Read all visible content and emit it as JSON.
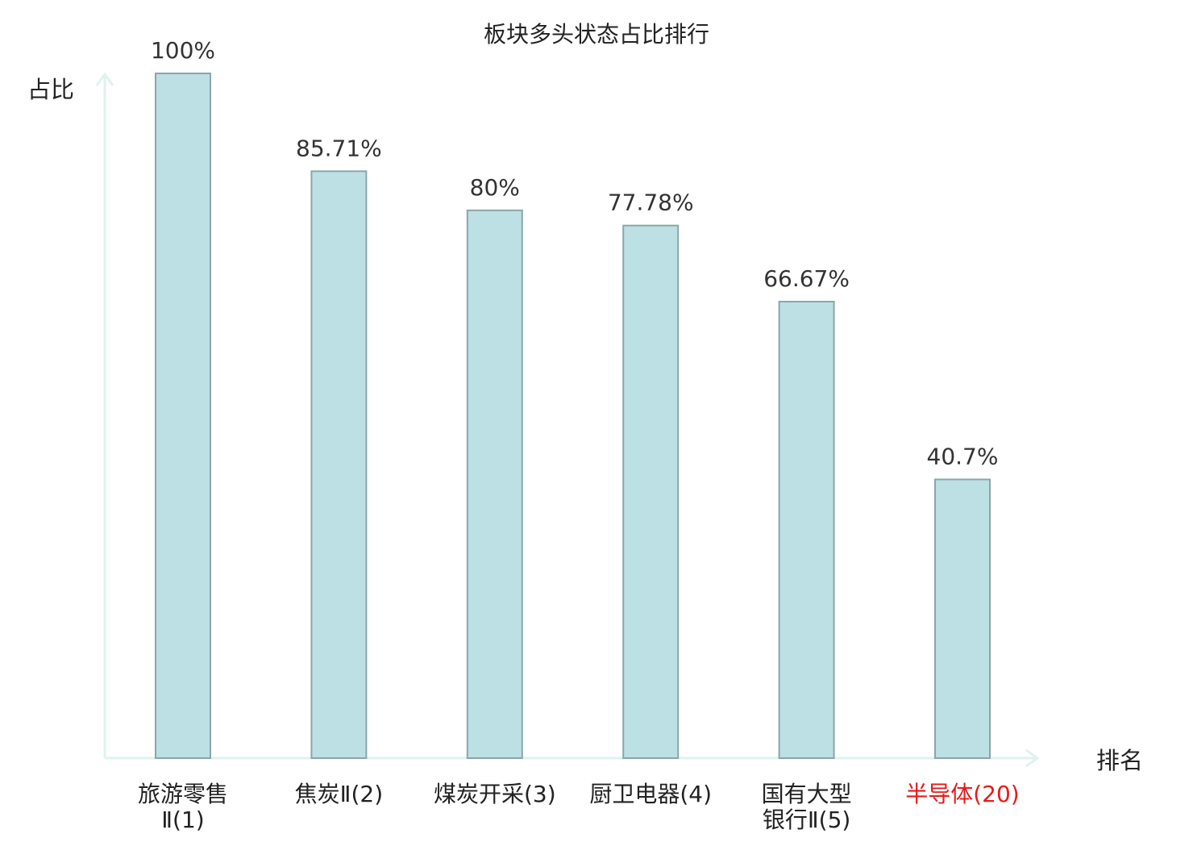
{
  "chart_data": {
    "type": "bar",
    "title": "板块多头状态占比排行",
    "ylabel": "占比",
    "xlabel": "排名",
    "ylim": [
      0,
      100
    ],
    "grid": false,
    "legend": "none",
    "categories": [
      {
        "lines": [
          "旅游零售",
          "Ⅱ(1)"
        ],
        "highlight": false
      },
      {
        "lines": [
          "焦炭Ⅱ(2)"
        ],
        "highlight": false
      },
      {
        "lines": [
          "煤炭开采(3)"
        ],
        "highlight": false
      },
      {
        "lines": [
          "厨卫电器(4)"
        ],
        "highlight": false
      },
      {
        "lines": [
          "国有大型",
          "银行Ⅱ(5)"
        ],
        "highlight": false
      },
      {
        "lines": [
          "半导体(20)"
        ],
        "highlight": true
      }
    ],
    "values": [
      100,
      85.71,
      80,
      77.78,
      66.67,
      40.7
    ],
    "value_labels": [
      "100%",
      "85.71%",
      "80%",
      "77.78%",
      "66.67%",
      "40.7%"
    ]
  },
  "colors": {
    "bar_fill": "#bce0e3",
    "bar_stroke": "#8aa6aa",
    "axis": "#dff2ef",
    "text": "#222222",
    "value_text": "#333333",
    "highlight": "#e81a1a"
  }
}
